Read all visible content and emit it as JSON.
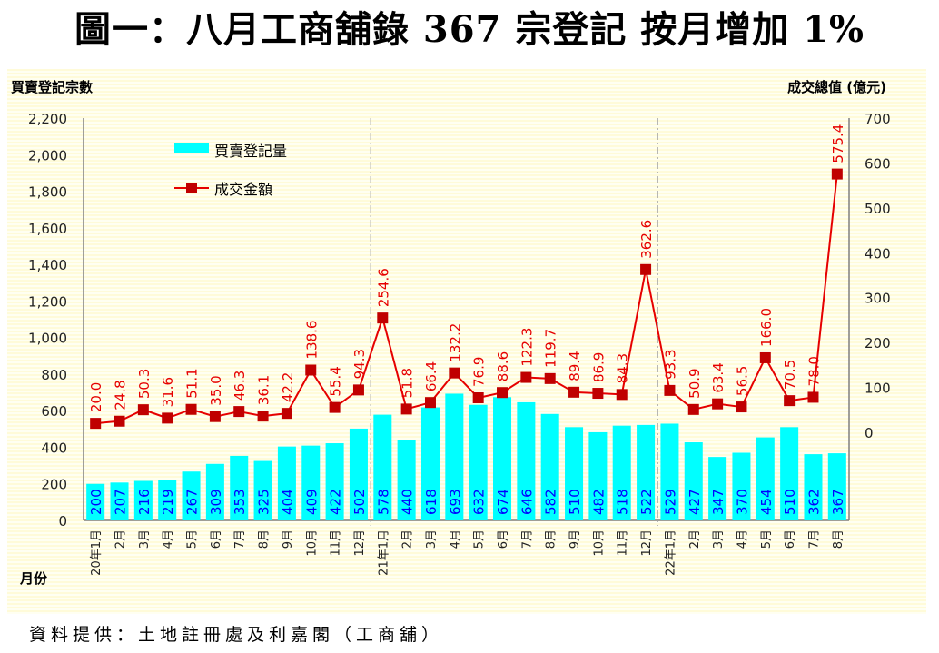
{
  "title": "圖一：八月工商舖錄 367 宗登記  按月增加 1%",
  "source": "資料提供：土地註冊處及利嘉閣（工商舖）",
  "colors": {
    "bar": "#00ffff",
    "bar_label": "#0000ff",
    "line": "#e60000",
    "marker": "#c00000",
    "line_label": "#e60000",
    "axis": "#808080",
    "separator": "#a0a0a0"
  },
  "chart_data": {
    "type": "bar+line",
    "title": "圖一：八月工商舖錄 367 宗登記  按月增加 1%",
    "xlabel": "月份",
    "ylabel": "買賣登記宗數",
    "y2label": "成交總值 (億元)",
    "ylim": [
      0,
      2200
    ],
    "y2lim_ticks": [
      0,
      700
    ],
    "yticks": [
      "0",
      "200",
      "400",
      "600",
      "800",
      "1,000",
      "1,200",
      "1,400",
      "1,600",
      "1,800",
      "2,000",
      "2,200"
    ],
    "y2ticks": [
      "0",
      "100",
      "200",
      "300",
      "400",
      "500",
      "600",
      "700"
    ],
    "grid": false,
    "legend": {
      "placement": "top-left",
      "entries": [
        "買賣登記量",
        "成交金額"
      ]
    },
    "categories": [
      "20年1月",
      "2月",
      "3月",
      "4月",
      "5月",
      "6月",
      "7月",
      "8月",
      "9月",
      "10月",
      "11月",
      "12月",
      "21年1月",
      "2月",
      "3月",
      "4月",
      "5月",
      "6月",
      "7月",
      "8月",
      "9月",
      "10月",
      "11月",
      "12月",
      "22年1月",
      "2月",
      "3月",
      "4月",
      "5月",
      "6月",
      "7月",
      "8月"
    ],
    "year_separators_after_index": [
      11,
      23
    ],
    "series": [
      {
        "name": "買賣登記量",
        "type": "bar",
        "axis": "left",
        "values": [
          200,
          207,
          216,
          219,
          267,
          309,
          353,
          325,
          404,
          409,
          422,
          502,
          578,
          440,
          618,
          693,
          632,
          674,
          646,
          582,
          510,
          482,
          518,
          522,
          529,
          427,
          347,
          370,
          454,
          510,
          362,
          367
        ],
        "labels": [
          "200",
          "207",
          "216",
          "219",
          "267",
          "309",
          "353",
          "325",
          "404",
          "409",
          "422",
          "502",
          "578",
          "440",
          "618",
          "693",
          "632",
          "674",
          "646",
          "582",
          "510",
          "482",
          "518",
          "522",
          "529",
          "427",
          "347",
          "370",
          "454",
          "510",
          "362",
          "367"
        ]
      },
      {
        "name": "成交金額",
        "type": "line",
        "axis": "right",
        "values": [
          20.0,
          24.8,
          50.3,
          31.6,
          51.1,
          35.0,
          46.3,
          36.1,
          42.2,
          138.6,
          55.4,
          94.3,
          254.6,
          51.8,
          66.4,
          132.2,
          76.9,
          88.6,
          122.3,
          119.7,
          89.4,
          86.9,
          84.3,
          362.6,
          93.3,
          50.9,
          63.4,
          56.5,
          166.0,
          70.5,
          78.0,
          575.4
        ],
        "labels": [
          "20.0",
          "24.8",
          "50.3",
          "31.6",
          "51.1",
          "35.0",
          "46.3",
          "36.1",
          "42.2",
          "138.6",
          "55.4",
          "94.3",
          "254.6",
          "51.8",
          "66.4",
          "132.2",
          "76.9",
          "88.6",
          "122.3",
          "119.7",
          "89.4",
          "86.9",
          "84.3",
          "362.6",
          "93.3",
          "50.9",
          "63.4",
          "56.5",
          "166.0",
          "70.5",
          "78.0",
          "575.4"
        ]
      }
    ]
  }
}
